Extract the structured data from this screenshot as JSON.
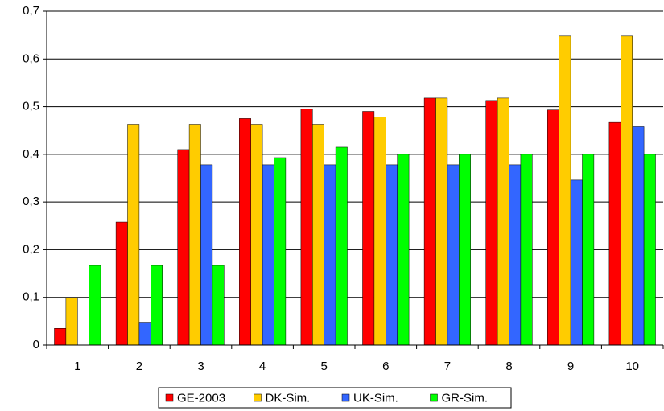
{
  "chart_data": {
    "type": "bar",
    "categories": [
      "1",
      "2",
      "3",
      "4",
      "5",
      "6",
      "7",
      "8",
      "9",
      "10"
    ],
    "series": [
      {
        "name": "GE-2003",
        "color": "#ff0000",
        "values": [
          0.035,
          0.258,
          0.41,
          0.475,
          0.495,
          0.49,
          0.518,
          0.513,
          0.493,
          0.467
        ]
      },
      {
        "name": "DK-Sim.",
        "color": "#ffcc00",
        "values": [
          0.1,
          0.463,
          0.463,
          0.463,
          0.463,
          0.478,
          0.518,
          0.518,
          0.648,
          0.648
        ]
      },
      {
        "name": "UK-Sim.",
        "color": "#3366ff",
        "values": [
          0,
          0.048,
          0.378,
          0.378,
          0.378,
          0.378,
          0.378,
          0.378,
          0.346,
          0.458
        ]
      },
      {
        "name": "GR-Sim.",
        "color": "#00ff00",
        "values": [
          0.167,
          0.167,
          0.167,
          0.393,
          0.415,
          0.4,
          0.4,
          0.4,
          0.4,
          0.4
        ]
      }
    ],
    "ylim": [
      0,
      0.7
    ],
    "yticks": [
      0,
      {
        "value": 0.1,
        "label": "0,1"
      },
      {
        "value": 0.2,
        "label": "0,2"
      },
      {
        "value": 0.3,
        "label": "0,3"
      },
      {
        "value": 0.4,
        "label": "0,4"
      },
      {
        "value": 0.5,
        "label": "0,5"
      },
      {
        "value": 0.6,
        "label": "0,6"
      },
      {
        "value": 0.7,
        "label": "0,7"
      }
    ],
    "grid": true,
    "legend": "bottom"
  }
}
